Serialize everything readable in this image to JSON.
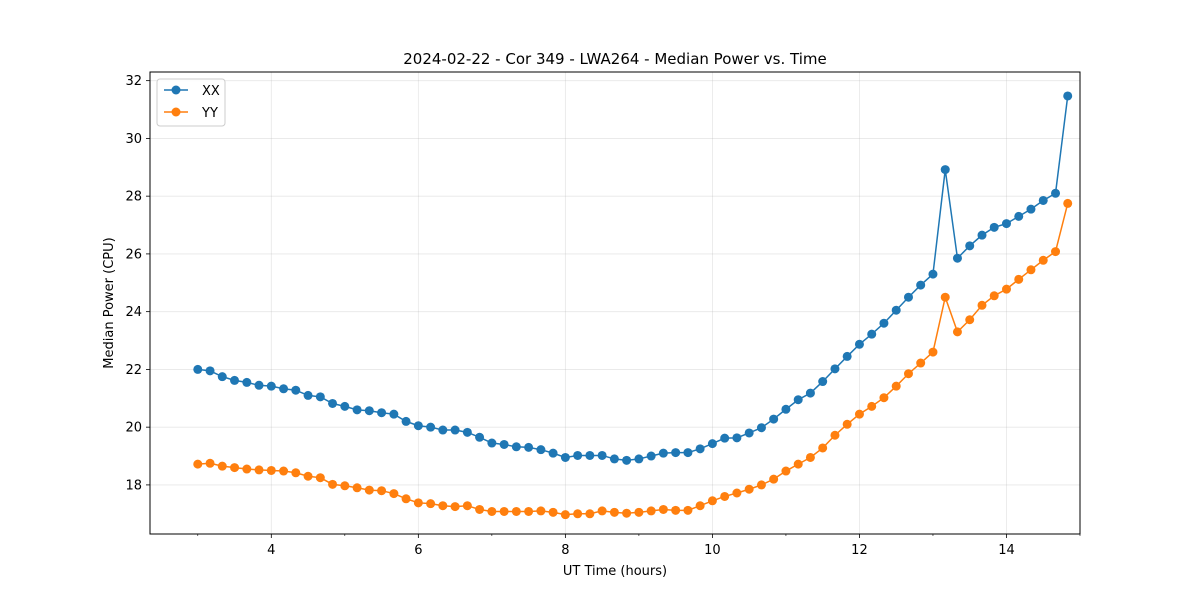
{
  "chart_data": {
    "type": "line",
    "title": "2024-02-22 - Cor 349 - LWA264 - Median Power vs. Time",
    "xlabel": "UT Time (hours)",
    "ylabel": "Median Power (CPU)",
    "xlim": [
      2.35,
      15.0
    ],
    "ylim": [
      16.3,
      32.3
    ],
    "xticks": [
      4,
      6,
      8,
      10,
      12,
      14
    ],
    "yticks": [
      18,
      20,
      22,
      24,
      26,
      28,
      30,
      32
    ],
    "grid": true,
    "legend_position": "upper left",
    "x": [
      3.0,
      3.167,
      3.333,
      3.5,
      3.667,
      3.833,
      4.0,
      4.167,
      4.333,
      4.5,
      4.667,
      4.833,
      5.0,
      5.167,
      5.333,
      5.5,
      5.667,
      5.833,
      6.0,
      6.167,
      6.333,
      6.5,
      6.667,
      6.833,
      7.0,
      7.167,
      7.333,
      7.5,
      7.667,
      7.833,
      8.0,
      8.167,
      8.333,
      8.5,
      8.667,
      8.833,
      9.0,
      9.167,
      9.333,
      9.5,
      9.667,
      9.833,
      10.0,
      10.167,
      10.333,
      10.5,
      10.667,
      10.833,
      11.0,
      11.167,
      11.333,
      11.5,
      11.667,
      11.833,
      12.0,
      12.167,
      12.333,
      12.5,
      12.667,
      12.833,
      13.0,
      13.167,
      13.333,
      13.5,
      13.667,
      13.833,
      14.0,
      14.167,
      14.333,
      14.5,
      14.667,
      14.833
    ],
    "series": [
      {
        "name": "XX",
        "color": "#1f77b4",
        "values": [
          22.0,
          21.95,
          21.75,
          21.62,
          21.55,
          21.45,
          21.42,
          21.33,
          21.28,
          21.1,
          21.05,
          20.82,
          20.72,
          20.6,
          20.57,
          20.5,
          20.45,
          20.2,
          20.05,
          20.0,
          19.9,
          19.9,
          19.82,
          19.65,
          19.45,
          19.4,
          19.32,
          19.3,
          19.22,
          19.1,
          18.95,
          19.02,
          19.02,
          19.02,
          18.9,
          18.85,
          18.9,
          19.0,
          19.1,
          19.12,
          19.12,
          19.25,
          19.43,
          19.62,
          19.63,
          19.8,
          19.98,
          20.28,
          20.62,
          20.95,
          21.18,
          21.58,
          22.02,
          22.45,
          22.87,
          23.22,
          23.6,
          24.05,
          24.5,
          24.92,
          25.3,
          28.92,
          25.85,
          26.28,
          26.65,
          26.92,
          27.05,
          27.3,
          27.55,
          27.85,
          28.1,
          31.47
        ]
      },
      {
        "name": "YY",
        "color": "#ff7f0e",
        "values": [
          18.72,
          18.75,
          18.65,
          18.6,
          18.55,
          18.52,
          18.5,
          18.48,
          18.42,
          18.3,
          18.25,
          18.02,
          17.97,
          17.9,
          17.82,
          17.8,
          17.7,
          17.52,
          17.38,
          17.35,
          17.28,
          17.25,
          17.28,
          17.15,
          17.08,
          17.08,
          17.08,
          17.08,
          17.1,
          17.05,
          16.97,
          17.0,
          17.0,
          17.1,
          17.05,
          17.02,
          17.05,
          17.1,
          17.15,
          17.12,
          17.12,
          17.28,
          17.45,
          17.6,
          17.72,
          17.85,
          18.0,
          18.2,
          18.48,
          18.72,
          18.95,
          19.28,
          19.72,
          20.1,
          20.45,
          20.72,
          21.02,
          21.42,
          21.85,
          22.22,
          22.6,
          24.5,
          23.3,
          23.72,
          24.22,
          24.55,
          24.78,
          25.12,
          25.45,
          25.78,
          26.08,
          27.75
        ]
      }
    ]
  }
}
